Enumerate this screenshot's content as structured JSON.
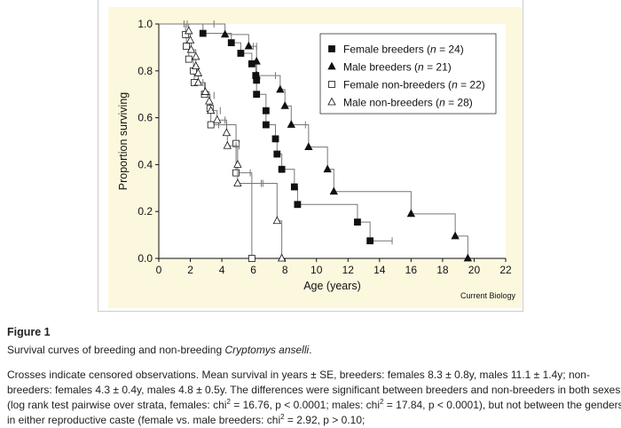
{
  "chart_data": {
    "type": "line",
    "title": "",
    "xlabel": "Age (years)",
    "ylabel": "Proportion surviving",
    "xlim": [
      0,
      22
    ],
    "ylim": [
      0,
      1
    ],
    "xticks": [
      0,
      2,
      4,
      6,
      8,
      10,
      12,
      14,
      16,
      18,
      20,
      22
    ],
    "yticks": [
      "0.0",
      "0.2",
      "0.4",
      "0.6",
      "0.8",
      "1.0"
    ],
    "legend_position": "top-right",
    "credit": "Current Biology",
    "series": [
      {
        "name": "Female breeders",
        "n": "24",
        "marker": "filled-square",
        "events": [
          [
            2.8,
            0.96
          ],
          [
            4.6,
            0.92
          ],
          [
            5.2,
            0.875
          ],
          [
            5.9,
            0.83
          ],
          [
            6.15,
            0.78
          ],
          [
            6.2,
            0.76
          ],
          [
            6.2,
            0.7
          ],
          [
            6.8,
            0.63
          ],
          [
            6.8,
            0.57
          ],
          [
            7.4,
            0.51
          ],
          [
            7.5,
            0.445
          ],
          [
            7.8,
            0.38
          ],
          [
            8.6,
            0.305
          ],
          [
            8.8,
            0.23
          ],
          [
            12.6,
            0.155
          ],
          [
            13.4,
            0.075
          ]
        ],
        "censored": [
          [
            14.8,
            0.075
          ]
        ]
      },
      {
        "name": "Male breeders",
        "n": "21",
        "marker": "filled-triangle",
        "events": [
          [
            4.2,
            0.955
          ],
          [
            5.7,
            0.905
          ],
          [
            6.2,
            0.84
          ],
          [
            6.2,
            0.78
          ],
          [
            7.7,
            0.72
          ],
          [
            8.0,
            0.65
          ],
          [
            8.4,
            0.57
          ],
          [
            9.5,
            0.475
          ],
          [
            10.7,
            0.38
          ],
          [
            11.1,
            0.285
          ],
          [
            16.0,
            0.19
          ],
          [
            18.8,
            0.095
          ],
          [
            19.6,
            0.0
          ]
        ],
        "censored": [
          [
            1.6,
            1.0
          ],
          [
            3.5,
            1.0
          ],
          [
            6.0,
            0.905
          ],
          [
            6.2,
            0.905
          ],
          [
            7.4,
            0.78
          ],
          [
            9.3,
            0.57
          ]
        ]
      },
      {
        "name": "Female non-breeders",
        "n": "22",
        "marker": "open-square",
        "events": [
          [
            1.7,
            0.955
          ],
          [
            1.75,
            0.905
          ],
          [
            1.9,
            0.85
          ],
          [
            2.2,
            0.8
          ],
          [
            2.25,
            0.75
          ],
          [
            2.9,
            0.7
          ],
          [
            3.25,
            0.64
          ],
          [
            3.3,
            0.57
          ],
          [
            4.9,
            0.49
          ],
          [
            4.9,
            0.365
          ],
          [
            5.9,
            0.0
          ]
        ],
        "censored": [
          [
            3.5,
            0.695
          ],
          [
            3.8,
            0.57
          ],
          [
            4.3,
            0.57
          ],
          [
            5.8,
            0.365
          ]
        ]
      },
      {
        "name": "Male non-breeders",
        "n": "28",
        "marker": "open-triangle",
        "events": [
          [
            1.9,
            0.97
          ],
          [
            2.0,
            0.93
          ],
          [
            2.05,
            0.89
          ],
          [
            2.35,
            0.86
          ],
          [
            2.35,
            0.82
          ],
          [
            2.5,
            0.79
          ],
          [
            2.5,
            0.75
          ],
          [
            2.95,
            0.71
          ],
          [
            3.2,
            0.67
          ],
          [
            3.3,
            0.63
          ],
          [
            3.7,
            0.59
          ],
          [
            4.3,
            0.535
          ],
          [
            4.35,
            0.48
          ],
          [
            5.0,
            0.4
          ],
          [
            5.0,
            0.32
          ],
          [
            7.5,
            0.16
          ],
          [
            7.8,
            0.0
          ]
        ],
        "censored": [
          [
            1.8,
            1.0
          ],
          [
            2.8,
            0.75
          ],
          [
            3.9,
            0.63
          ],
          [
            4.2,
            0.59
          ],
          [
            4.9,
            0.48
          ],
          [
            5.1,
            0.48
          ],
          [
            6.5,
            0.32
          ],
          [
            6.6,
            0.32
          ]
        ]
      }
    ]
  },
  "figure": {
    "label": "Figure 1",
    "caption_prefix": "Survival curves of breeding and non-breeding ",
    "caption_species": "Cryptomys anselli",
    "caption_suffix": ".",
    "para_1": "Crosses indicate censored observations. Mean survival in years ± SE, breeders: females 8.3 ± 0.8y, males 11.1 ± 1.4y; non-breeders: females 4.3 ± 0.4y, males 4.8 ± 0.5y. The differences were significant between breeders and non-breeders in both sexes (log rank test pairwise over strata, females: chi",
    "sup": "2",
    "para_2": " = 16.76, p < 0.0001; males: chi",
    "para_3": " = 17.84, p < 0.0001), but not between the genders in either reproductive caste (female vs. male breeders: chi",
    "para_4": " = 2.92, p > 0.10;"
  },
  "colors": {
    "panel": "#fcf8de",
    "line": "#777777",
    "ink": "#111111"
  }
}
